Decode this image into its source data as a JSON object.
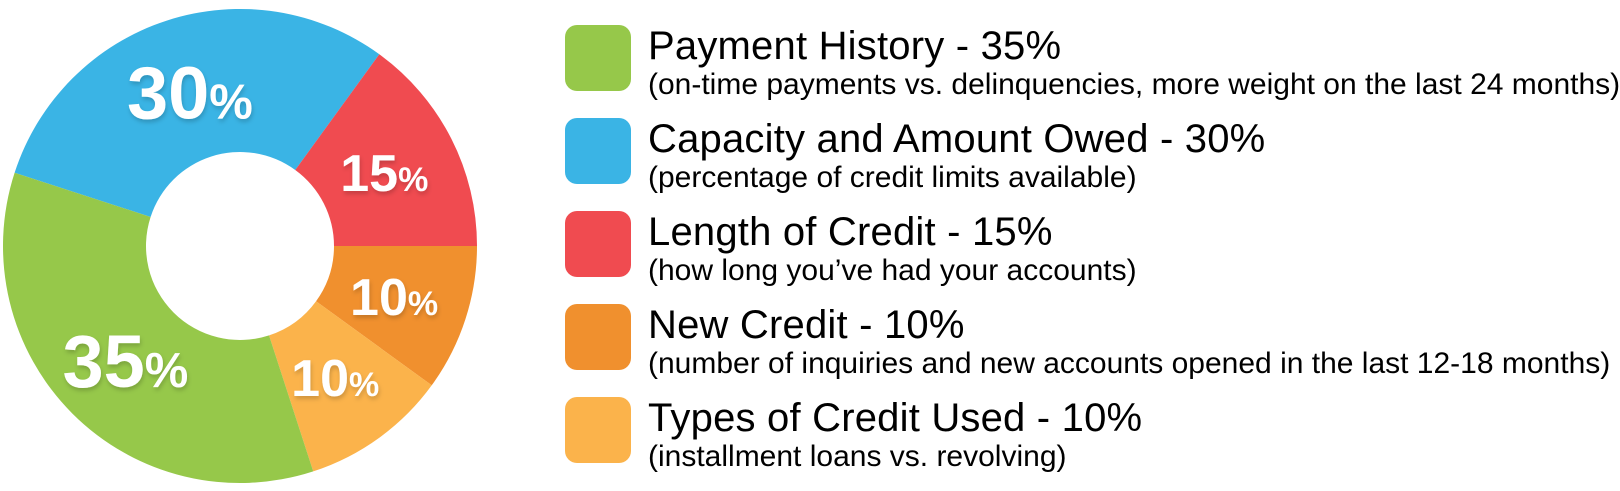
{
  "chart_data": {
    "type": "pie",
    "variant": "donut",
    "title": "",
    "start_angle_deg": -72,
    "direction": "clockwise",
    "slices": [
      {
        "label": "Capacity and Amount Owed",
        "value": 30,
        "display": "30%",
        "color": "#3AB4E5"
      },
      {
        "label": "Length of Credit",
        "value": 15,
        "display": "15%",
        "color": "#F04B50"
      },
      {
        "label": "New Credit",
        "value": 10,
        "display": "10%",
        "color": "#F0902E"
      },
      {
        "label": "Types of Credit Used",
        "value": 10,
        "display": "10%",
        "color": "#FBB34B"
      },
      {
        "label": "Payment History",
        "value": 35,
        "display": "35%",
        "color": "#96C84A"
      }
    ]
  },
  "legend": {
    "items": [
      {
        "id": "payment-history",
        "swatch_color": "#96C84A",
        "title": "Payment History - 35%",
        "subtitle": "(on-time payments vs. delinquencies, more weight on the last 24 months)"
      },
      {
        "id": "capacity-and-amount-owed",
        "swatch_color": "#3AB4E5",
        "title": "Capacity and Amount Owed - 30%",
        "subtitle": "(percentage of credit limits available)"
      },
      {
        "id": "length-of-credit",
        "swatch_color": "#F04B50",
        "title": "Length of Credit - 15%",
        "subtitle": "(how long you’ve had your accounts)"
      },
      {
        "id": "new-credit",
        "swatch_color": "#F0902E",
        "title": "New Credit - 10%",
        "subtitle": "(number of inquiries and new accounts opened in the last 12-18 months)"
      },
      {
        "id": "types-of-credit-used",
        "swatch_color": "#FBB34B",
        "title": "Types of Credit Used - 10%",
        "subtitle": "(installment loans vs. revolving)"
      }
    ]
  }
}
